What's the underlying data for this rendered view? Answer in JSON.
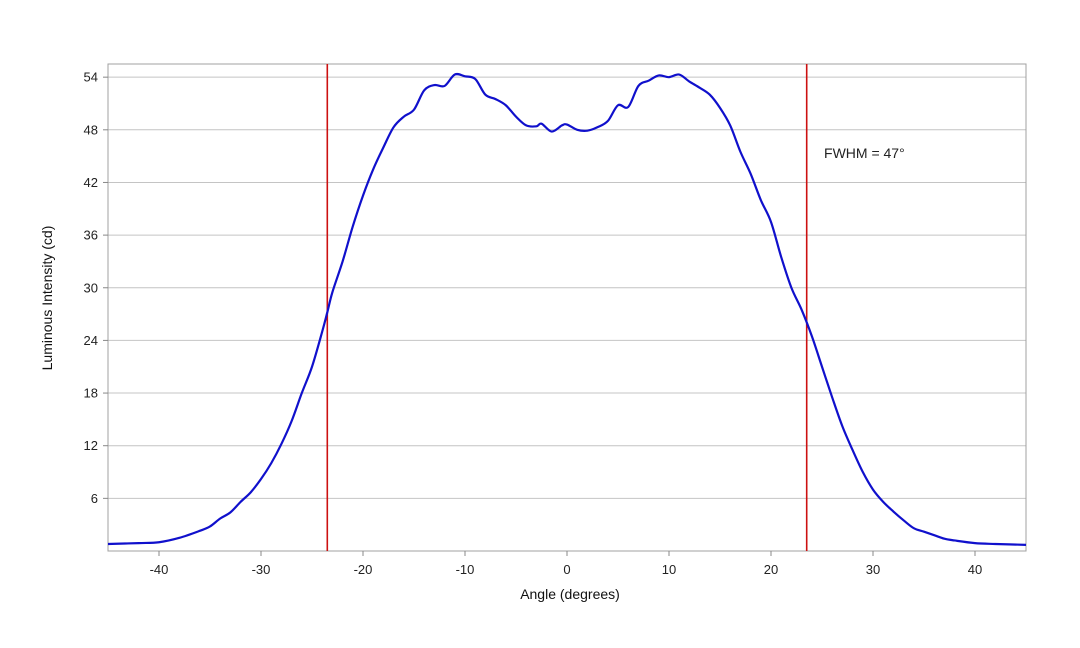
{
  "chart_data": {
    "type": "line",
    "title": "",
    "xlabel": "Angle (degrees)",
    "ylabel": "Luminous Intensity (cd)",
    "xlim": [
      -45,
      45
    ],
    "ylim": [
      0,
      55.5
    ],
    "xticks": [
      -40,
      -30,
      -20,
      -10,
      0,
      10,
      20,
      30,
      40
    ],
    "yticks": [
      6,
      12,
      18,
      24,
      30,
      36,
      42,
      48,
      54
    ],
    "grid": "horizontal",
    "legend": "none",
    "series": [
      {
        "color": "#1010cc",
        "points": [
          [
            -45,
            0.8
          ],
          [
            -42,
            0.9
          ],
          [
            -40,
            1.0
          ],
          [
            -38,
            1.5
          ],
          [
            -36,
            2.3
          ],
          [
            -35,
            2.8
          ],
          [
            -34,
            3.7
          ],
          [
            -33,
            4.4
          ],
          [
            -32,
            5.6
          ],
          [
            -31,
            6.7
          ],
          [
            -30,
            8.2
          ],
          [
            -29,
            10.0
          ],
          [
            -28,
            12.2
          ],
          [
            -27,
            14.8
          ],
          [
            -26,
            18.0
          ],
          [
            -25,
            21.0
          ],
          [
            -24,
            25.0
          ],
          [
            -23.5,
            27.2
          ],
          [
            -23,
            29.5
          ],
          [
            -22,
            33.0
          ],
          [
            -21,
            37.0
          ],
          [
            -20,
            40.5
          ],
          [
            -19,
            43.5
          ],
          [
            -18,
            46.0
          ],
          [
            -17,
            48.3
          ],
          [
            -16,
            49.5
          ],
          [
            -15,
            50.3
          ],
          [
            -14,
            52.5
          ],
          [
            -13,
            53.1
          ],
          [
            -12,
            53.0
          ],
          [
            -11,
            54.3
          ],
          [
            -10,
            54.1
          ],
          [
            -9,
            53.8
          ],
          [
            -8,
            52.0
          ],
          [
            -7,
            51.5
          ],
          [
            -6,
            50.8
          ],
          [
            -5,
            49.5
          ],
          [
            -4,
            48.5
          ],
          [
            -3,
            48.4
          ],
          [
            -2.5,
            48.7
          ],
          [
            -1.5,
            47.8
          ],
          [
            -0.5,
            48.5
          ],
          [
            0,
            48.6
          ],
          [
            1,
            48.0
          ],
          [
            2,
            47.9
          ],
          [
            3,
            48.3
          ],
          [
            4,
            49.0
          ],
          [
            5,
            50.8
          ],
          [
            6,
            50.6
          ],
          [
            7,
            53.0
          ],
          [
            8,
            53.6
          ],
          [
            9,
            54.2
          ],
          [
            10,
            54.0
          ],
          [
            11,
            54.3
          ],
          [
            12,
            53.5
          ],
          [
            13,
            52.8
          ],
          [
            14,
            52.0
          ],
          [
            15,
            50.5
          ],
          [
            16,
            48.5
          ],
          [
            17,
            45.5
          ],
          [
            18,
            43.0
          ],
          [
            19,
            40.0
          ],
          [
            20,
            37.5
          ],
          [
            21,
            33.5
          ],
          [
            22,
            30.0
          ],
          [
            23,
            27.5
          ],
          [
            24,
            24.5
          ],
          [
            25,
            21.0
          ],
          [
            26,
            17.5
          ],
          [
            27,
            14.2
          ],
          [
            28,
            11.5
          ],
          [
            29,
            9.0
          ],
          [
            30,
            7.0
          ],
          [
            31,
            5.6
          ],
          [
            32,
            4.5
          ],
          [
            33,
            3.5
          ],
          [
            34,
            2.6
          ],
          [
            35,
            2.2
          ],
          [
            36,
            1.8
          ],
          [
            37,
            1.4
          ],
          [
            38,
            1.2
          ],
          [
            40,
            0.9
          ],
          [
            42,
            0.8
          ],
          [
            45,
            0.7
          ]
        ]
      }
    ],
    "markers": [
      {
        "x": -23.5,
        "color": "#cc1111"
      },
      {
        "x": 23.5,
        "color": "#cc1111"
      }
    ],
    "annotations": [
      {
        "text": "FWHM = 47°",
        "x": 25.2,
        "y": 44.8
      }
    ]
  }
}
